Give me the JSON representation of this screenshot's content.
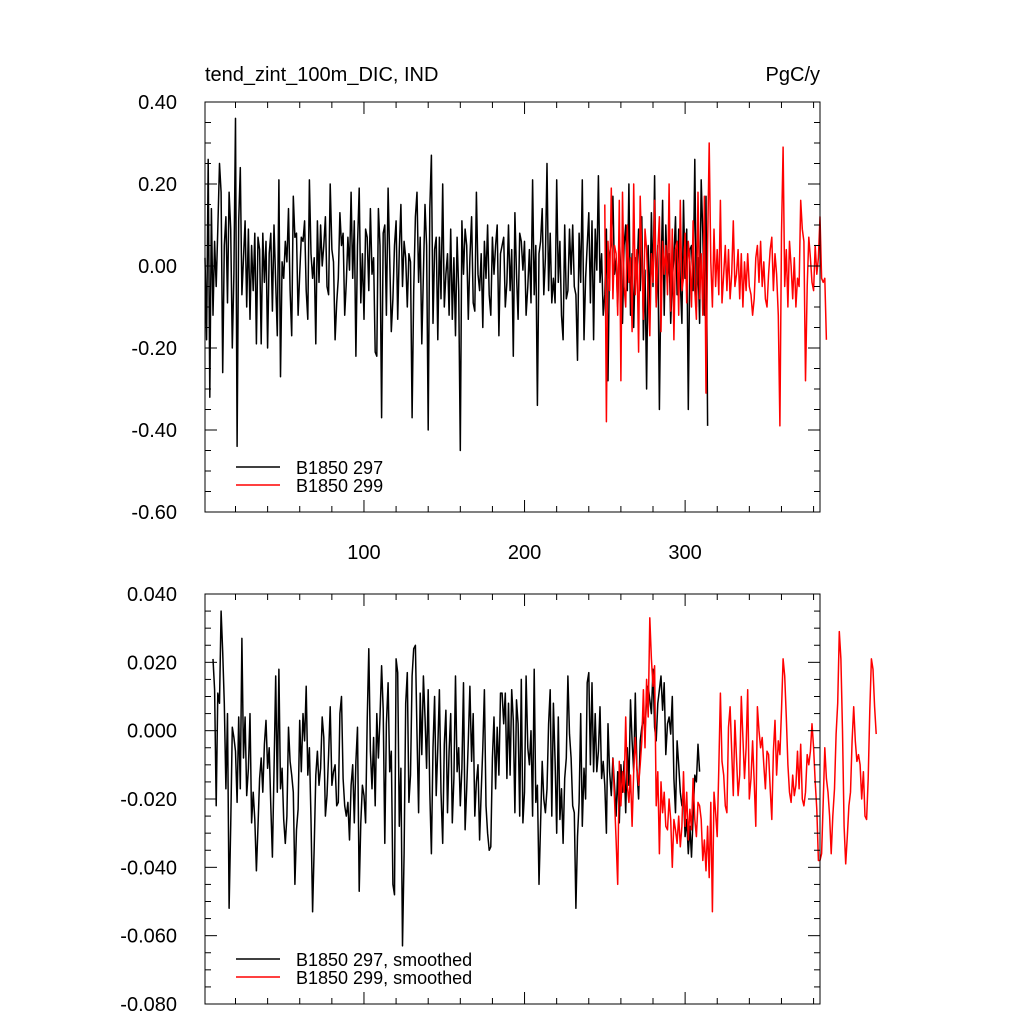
{
  "chart_data": [
    {
      "type": "line",
      "title_left": "tend_zint_100m_DIC, IND",
      "title_right": "PgC/y",
      "xlim": [
        1,
        384
      ],
      "ylim": [
        -0.6,
        0.4
      ],
      "yticks": [
        0.4,
        0.2,
        0.0,
        -0.2,
        -0.4,
        -0.6
      ],
      "ytick_labels": [
        "0.40",
        "0.20",
        "0.00",
        "-0.20",
        "-0.40",
        "-0.60"
      ],
      "xticks": [
        100,
        200,
        300
      ],
      "xtick_labels": [
        "100",
        "200",
        "300"
      ],
      "show_xtick_labels": true,
      "legend_position": "bottom-left",
      "series": [
        {
          "name": "B1850 297",
          "color": "#000000",
          "x_start": 1,
          "values": [
            0.02,
            -0.18,
            0.26,
            -0.32,
            0.14,
            -0.12,
            0.06,
            -0.05,
            0.09,
            0.25,
            0.18,
            -0.26,
            0.05,
            0.12,
            -0.09,
            0.18,
            0.09,
            -0.2,
            -0.02,
            0.36,
            -0.44,
            0.11,
            0.24,
            -0.07,
            0.02,
            0.11,
            -0.1,
            0.09,
            -0.13,
            0.05,
            -0.06,
            0.08,
            -0.19,
            0.07,
            0.04,
            -0.19,
            0.08,
            -0.04,
            0.06,
            -0.2,
            0.03,
            0.08,
            -0.11,
            0.1,
            -0.04,
            -0.17,
            0.21,
            -0.27,
            0.01,
            -0.03,
            0.06,
            0.01,
            0.14,
            -0.06,
            -0.17,
            0.17,
            0.07,
            0.08,
            -0.12,
            -0.02,
            0.07,
            0.06,
            0.11,
            -0.06,
            -0.13,
            0.21,
            0.03,
            -0.03,
            0.02,
            -0.19,
            0.11,
            -0.04,
            0.1,
            0.0,
            0.05,
            0.12,
            -0.05,
            -0.07,
            0.2,
            0.04,
            0.01,
            -0.18,
            -0.09,
            -0.03,
            0.13,
            0.05,
            0.08,
            -0.12,
            -0.04,
            0.07,
            -0.01,
            0.18,
            -0.03,
            0.11,
            -0.22,
            0.05,
            0.19,
            -0.09,
            0.03,
            -0.13,
            0.09,
            0.07,
            -0.06,
            0.14,
            -0.02,
            0.02,
            -0.21,
            -0.22,
            0.14,
            0.05,
            -0.37,
            0.08,
            0.1,
            -0.12,
            0.19,
            0.02,
            -0.16,
            -0.08,
            0.05,
            0.11,
            -0.13,
            0.04,
            0.15,
            -0.05,
            0.06,
            0.02,
            -0.1,
            0.03,
            0.01,
            -0.37,
            -0.06,
            0.12,
            0.18,
            -0.04,
            0.07,
            -0.19,
            -0.02,
            0.15,
            0.05,
            -0.4,
            0.14,
            0.27,
            -0.14,
            0.04,
            0.07,
            -0.18,
            0.07,
            -0.08,
            0.2,
            -0.1,
            -0.02,
            0.03,
            -0.12,
            0.09,
            -0.13,
            0.02,
            -0.17,
            0.07,
            -0.06,
            -0.45,
            0.11,
            -0.02,
            0.09,
            0.05,
            -0.13,
            0.02,
            0.12,
            -0.09,
            -0.11,
            0.18,
            -0.02,
            -0.06,
            0.03,
            -0.15,
            0.06,
            -0.03,
            0.1,
            -0.07,
            -0.12,
            0.07,
            -0.02,
            0.05,
            0.1,
            -0.17,
            0.03,
            0.05,
            0.07,
            -0.1,
            -0.04,
            0.1,
            -0.06,
            0.04,
            -0.22,
            0.13,
            -0.02,
            -0.13,
            0.08,
            0.06,
            -0.01,
            0.06,
            -0.12,
            -0.05,
            0.04,
            -0.09,
            0.21,
            -0.07,
            0.05,
            -0.34,
            0.03,
            0.06,
            0.14,
            -0.07,
            0.02,
            0.25,
            -0.06,
            0.08,
            -0.09,
            -0.03,
            -0.09,
            0.21,
            -0.04,
            0.06,
            -0.12,
            -0.18,
            0.1,
            -0.08,
            -0.06,
            0.09,
            -0.02,
            0.1,
            -0.05,
            -0.07,
            -0.23,
            0.08,
            -0.04,
            0.21,
            -0.18,
            -0.03,
            0.05,
            0.13,
            -0.09,
            0.11,
            -0.18,
            0.09,
            -0.01,
            0.22,
            -0.04,
            0.03,
            -0.12,
            -0.07,
            0.09,
            -0.28,
            0.03,
            0.06,
            0.17,
            -0.02,
            0.02,
            -0.1,
            0.08,
            -0.03,
            -0.14,
            0.05,
            0.1,
            -0.06,
            0.2,
            -0.12,
            0.03,
            -0.15,
            0.02,
            -0.02,
            0.09,
            -0.06,
            0.12,
            -0.18,
            -0.01,
            -0.3,
            0.05,
            -0.11,
            0.13,
            -0.05,
            0.22,
            -0.09,
            0.05,
            -0.35,
            -0.02,
            0.16,
            -0.12,
            0.1,
            -0.04,
            0.03,
            -0.14,
            -0.03,
            0.02,
            0.12,
            -0.07,
            0.09,
            -0.04,
            -0.14,
            0.16,
            -0.03,
            0.09,
            -0.35,
            0.04,
            0.05,
            -0.06,
            0.26,
            -0.1,
            0.02,
            -0.14,
            0.21,
            0.08,
            -0.12,
            0.17,
            -0.39
          ]
        },
        {
          "name": "B1850 299",
          "color": "#ff0000",
          "x_start": 250,
          "values": [
            0.15,
            -0.38,
            0.06,
            -0.06,
            0.19,
            -0.08,
            0.05,
            0.03,
            -0.12,
            0.16,
            -0.28,
            0.18,
            -0.05,
            -0.1,
            0.1,
            -0.04,
            0.02,
            -0.16,
            0.2,
            -0.07,
            0.04,
            -0.21,
            0.17,
            0.02,
            -0.13,
            0.09,
            0.04,
            -0.07,
            -0.17,
            0.03,
            -0.04,
            0.16,
            -0.1,
            0.04,
            0.12,
            -0.16,
            0.06,
            -0.02,
            0.05,
            -0.07,
            0.2,
            -0.11,
            0.09,
            -0.18,
            0.04,
            0.06,
            -0.12,
            0.16,
            -0.06,
            -0.03,
            0.08,
            -0.09,
            0.06,
            0.01,
            -0.1,
            0.11,
            -0.06,
            -0.13,
            0.18,
            -0.08,
            0.03,
            -0.12,
            0.17,
            -0.31,
            0.05,
            0.3,
            0.01,
            -0.1,
            0.09,
            -0.05,
            0.04,
            -0.07,
            0.16,
            -0.09,
            -0.02,
            0.05,
            -0.06,
            0.04,
            -0.08,
            -0.02,
            0.11,
            -0.05,
            -0.02,
            0.04,
            -0.08,
            0.03,
            -0.1,
            0.01,
            -0.06,
            0.03,
            -0.05,
            -0.07,
            -0.12,
            -0.08,
            0.02,
            0.05,
            -0.04,
            0.06,
            -0.05,
            0.01,
            -0.08,
            -0.1,
            -0.02,
            0.04,
            0.07,
            -0.06,
            0.03,
            -0.02,
            -0.12,
            -0.39,
            0.08,
            0.29,
            -0.05,
            0.04,
            -0.1,
            0.06,
            0.0,
            -0.08,
            0.02,
            -0.1,
            -0.03,
            -0.05,
            0.16,
            0.09,
            0.06,
            -0.28,
            -0.05,
            0.07,
            0.02,
            -0.04,
            -0.06,
            0.05,
            -0.02,
            0.02,
            0.12,
            -0.03,
            -0.04,
            -0.03,
            -0.18
          ]
        }
      ]
    },
    {
      "type": "line",
      "xlim": [
        1,
        384
      ],
      "ylim": [
        -0.08,
        0.04
      ],
      "yticks": [
        0.04,
        0.02,
        0.0,
        -0.02,
        -0.04,
        -0.06,
        -0.08
      ],
      "ytick_labels": [
        "0.040",
        "0.020",
        "0.000",
        "-0.020",
        "-0.040",
        "-0.060",
        "-0.080"
      ],
      "xticks": [
        100,
        200,
        300
      ],
      "show_xtick_labels": false,
      "legend_position": "bottom-left",
      "series": [
        {
          "name": "B1850 297, smoothed",
          "color": "#000000",
          "x_start": 6,
          "values": [
            0.021,
            0.012,
            -0.022,
            0.011,
            0.008,
            0.035,
            0.023,
            0.008,
            -0.017,
            0.005,
            -0.052,
            -0.028,
            0.001,
            -0.002,
            -0.006,
            -0.021,
            0.004,
            -0.017,
            0.027,
            -0.008,
            0.004,
            -0.019,
            -0.011,
            0.005,
            -0.027,
            -0.018,
            -0.026,
            -0.041,
            -0.028,
            -0.014,
            -0.008,
            -0.018,
            -0.004,
            0.003,
            -0.011,
            -0.005,
            -0.022,
            -0.037,
            -0.012,
            0.016,
            -0.018,
            0.018,
            -0.017,
            -0.011,
            -0.026,
            -0.033,
            -0.025,
            0.001,
            -0.009,
            -0.013,
            -0.018,
            -0.045,
            -0.029,
            -0.023,
            0.003,
            -0.012,
            0.005,
            -0.003,
            0.013,
            -0.013,
            -0.005,
            -0.026,
            -0.053,
            -0.034,
            -0.013,
            -0.006,
            -0.016,
            -0.011,
            0.004,
            -0.002,
            -0.025,
            -0.019,
            -0.007,
            0.007,
            -0.016,
            -0.012,
            -0.01,
            -0.022,
            -0.021,
            0.005,
            0.01,
            -0.014,
            -0.022,
            -0.025,
            -0.021,
            -0.032,
            -0.016,
            -0.01,
            -0.027,
            -0.009,
            0.001,
            -0.047,
            -0.027,
            -0.016,
            -0.019,
            -0.027,
            0.003,
            0.024,
            -0.006,
            -0.017,
            -0.002,
            -0.022,
            0.005,
            -0.008,
            0.004,
            0.019,
            0.006,
            -0.033,
            0.002,
            0.014,
            -0.012,
            -0.006,
            -0.045,
            -0.048,
            0.021,
            0.017,
            -0.028,
            -0.011,
            -0.063,
            -0.036,
            0.008,
            0.017,
            -0.021,
            -0.013,
            0.016,
            0.024,
            0.025,
            -0.001,
            -0.024,
            0.011,
            -0.007,
            0.016,
            0.004,
            -0.011,
            0.012,
            -0.018,
            -0.036,
            -0.005,
            0.01,
            -0.019,
            -0.005,
            0.012,
            -0.018,
            -0.033,
            -0.004,
            0.006,
            -0.024,
            -0.006,
            0.005,
            -0.027,
            -0.014,
            0.016,
            -0.012,
            -0.005,
            -0.022,
            -0.011,
            0.014,
            -0.029,
            -0.017,
            -0.003,
            0.013,
            -0.009,
            0.005,
            -0.025,
            -0.015,
            -0.01,
            -0.032,
            -0.018,
            -0.005,
            0.012,
            -0.022,
            -0.03,
            -0.035,
            -0.034,
            -0.008,
            0.004,
            -0.017,
            0.001,
            -0.013,
            0.011,
            0.011,
            0.002,
            0.011,
            -0.014,
            0.008,
            -0.013,
            0.012,
            0.003,
            -0.024,
            0.009,
            0.002,
            -0.025,
            0.015,
            -0.027,
            -0.018,
            0.016,
            -0.005,
            -0.01,
            0.0,
            -0.025,
            0.018,
            -0.021,
            -0.016,
            -0.045,
            -0.027,
            -0.009,
            -0.02,
            -0.024,
            -0.017,
            0.002,
            0.012,
            -0.025,
            0.008,
            -0.009,
            -0.03,
            0.004,
            -0.026,
            -0.017,
            -0.033,
            -0.014,
            -0.008,
            0.016,
            -0.001,
            -0.008,
            -0.022,
            -0.024,
            -0.052,
            -0.031,
            -0.021,
            0.005,
            -0.028,
            -0.011,
            -0.02,
            0.014,
            0.017,
            -0.01,
            0.014,
            -0.012,
            0.005,
            -0.012,
            -0.006,
            0.007,
            -0.014,
            -0.009,
            -0.016,
            -0.03,
            0.002,
            -0.012,
            -0.019,
            -0.008,
            -0.016,
            -0.025,
            -0.012,
            -0.027,
            -0.01,
            -0.018,
            -0.009,
            -0.024,
            -0.005,
            -0.016,
            0.009,
            -0.003,
            -0.012,
            0.011,
            -0.011,
            -0.02,
            -0.003,
            0.001,
            0.004,
            -0.001,
            0.01,
            0.013,
            0.009,
            0.005,
            0.018,
            0.001,
            -0.003,
            0.008,
            0.012,
            0.016,
            0.006,
            0.014,
            -0.007,
            0.002,
            0.004,
            -0.001,
            0.01,
            -0.014,
            -0.024,
            -0.003,
            -0.01,
            -0.018,
            -0.022,
            -0.018,
            -0.031,
            -0.026,
            -0.036,
            -0.028,
            -0.037,
            -0.025,
            -0.013,
            -0.015,
            -0.004,
            -0.012
          ]
        },
        {
          "name": "B1850 299, smoothed",
          "color": "#ff0000",
          "x_start": 255,
          "values": [
            -0.008,
            -0.02,
            -0.032,
            -0.045,
            -0.009,
            -0.022,
            -0.012,
            -0.018,
            0.004,
            -0.016,
            -0.021,
            -0.013,
            -0.028,
            -0.012,
            -0.002,
            -0.011,
            -0.016,
            -0.01,
            -0.003,
            0.012,
            -0.005,
            0.015,
            0.004,
            0.033,
            0.021,
            0.013,
            0.019,
            -0.022,
            -0.012,
            -0.036,
            -0.015,
            -0.024,
            -0.018,
            -0.028,
            -0.029,
            -0.02,
            -0.026,
            -0.04,
            -0.026,
            -0.029,
            -0.033,
            -0.025,
            -0.034,
            -0.028,
            -0.012,
            -0.028,
            -0.018,
            -0.032,
            -0.023,
            -0.029,
            -0.014,
            -0.026,
            -0.031,
            -0.021,
            -0.022,
            -0.026,
            -0.038,
            -0.032,
            -0.041,
            -0.028,
            -0.043,
            -0.021,
            -0.053,
            -0.018,
            -0.024,
            -0.031,
            -0.011,
            0.011,
            -0.009,
            -0.013,
            -0.022,
            -0.024,
            0.001,
            0.007,
            -0.006,
            -0.019,
            0.003,
            -0.008,
            -0.019,
            -0.013,
            0.01,
            -0.002,
            -0.014,
            -0.005,
            0.012,
            -0.02,
            -0.014,
            -0.003,
            -0.015,
            -0.028,
            0.007,
            0.0,
            -0.005,
            -0.002,
            -0.01,
            -0.017,
            -0.006,
            -0.007,
            -0.017,
            -0.026,
            -0.006,
            0.003,
            -0.013,
            -0.003,
            -0.007,
            0.006,
            0.021,
            0.016,
            0.004,
            -0.01,
            -0.018,
            -0.021,
            -0.013,
            -0.019,
            -0.016,
            -0.006,
            -0.017,
            -0.004,
            -0.02,
            -0.022,
            -0.018,
            -0.007,
            -0.01,
            -0.006,
            0.002,
            -0.005,
            -0.015,
            -0.023,
            -0.038,
            -0.038,
            -0.036,
            -0.021,
            -0.005,
            -0.014,
            -0.018,
            -0.025,
            -0.036,
            -0.025,
            -0.017,
            -0.001,
            0.008,
            0.029,
            0.021,
            0.0,
            -0.028,
            -0.039,
            -0.031,
            -0.022,
            -0.018,
            -0.003,
            0.007,
            -0.003,
            -0.009,
            -0.007,
            -0.01,
            -0.02,
            -0.012,
            -0.025,
            -0.026,
            -0.014,
            0.006,
            0.021,
            0.018,
            0.007,
            -0.001
          ]
        }
      ]
    }
  ]
}
